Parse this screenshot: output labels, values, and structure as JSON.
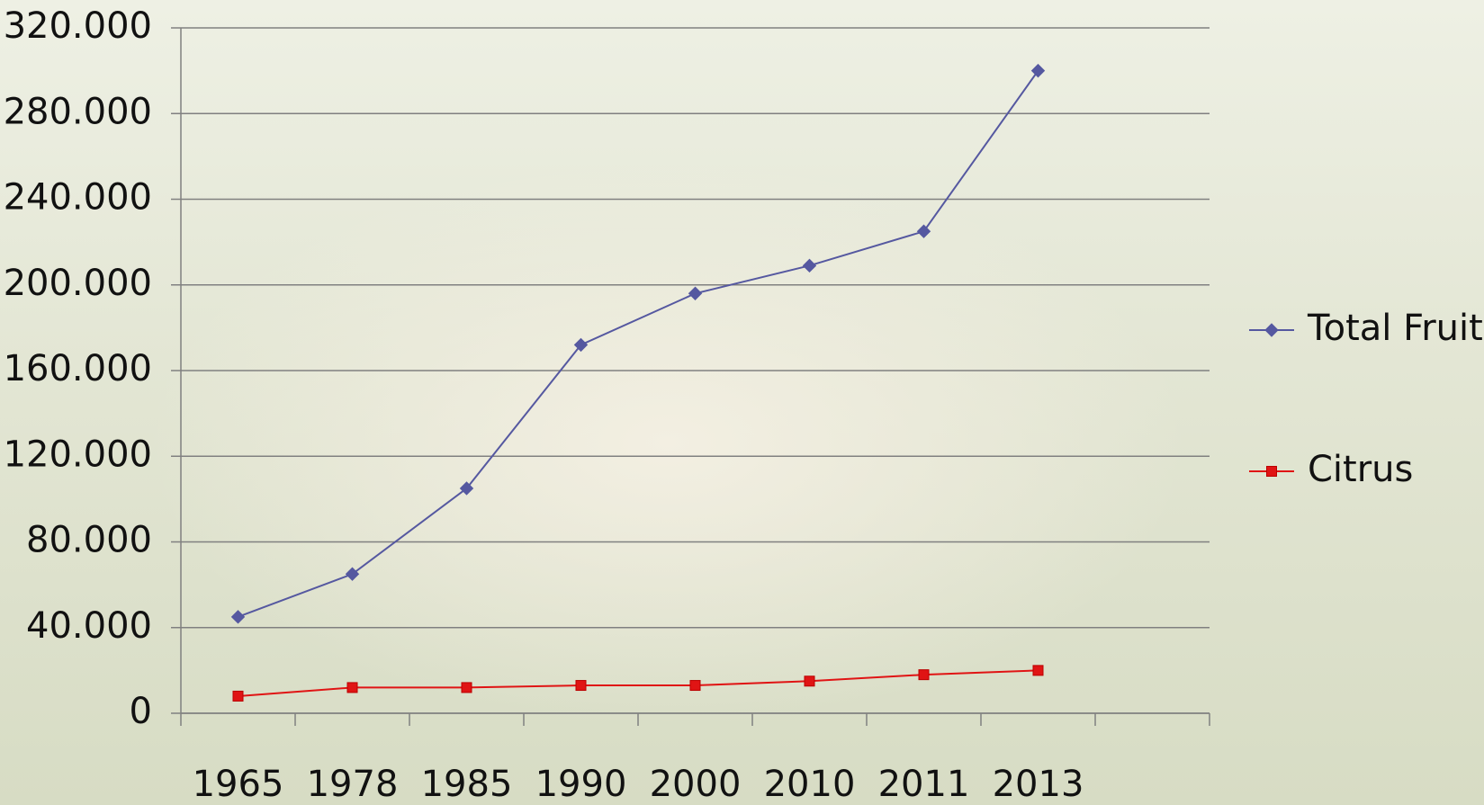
{
  "chart_data": {
    "type": "line",
    "categories": [
      "1965",
      "1978",
      "1985",
      "1990",
      "2000",
      "2010",
      "2011",
      "2013",
      null
    ],
    "series": [
      {
        "name": "Total Fruit",
        "color": "#5558a0",
        "marker": "diamond",
        "values": [
          45000,
          65000,
          105000,
          172000,
          196000,
          209000,
          225000,
          300000,
          null
        ]
      },
      {
        "name": "Citrus",
        "color": "#e01414",
        "marker": "square",
        "values": [
          8000,
          12000,
          12000,
          13000,
          13000,
          15000,
          18000,
          20000,
          null
        ]
      }
    ],
    "ylim": [
      0,
      320000
    ],
    "yticks": [
      0,
      {
        "value": 40000,
        "label": "40.000"
      },
      {
        "value": 80000,
        "label": "80.000"
      },
      {
        "value": 120000,
        "label": "120.000"
      },
      {
        "value": 160000,
        "label": "160.000"
      },
      {
        "value": 200000,
        "label": "200.000"
      },
      {
        "value": 240000,
        "label": "240.000"
      },
      {
        "value": 280000,
        "label": "280.000"
      },
      {
        "value": 320000,
        "label": "320.000"
      }
    ],
    "grid": true,
    "legend": "right"
  }
}
